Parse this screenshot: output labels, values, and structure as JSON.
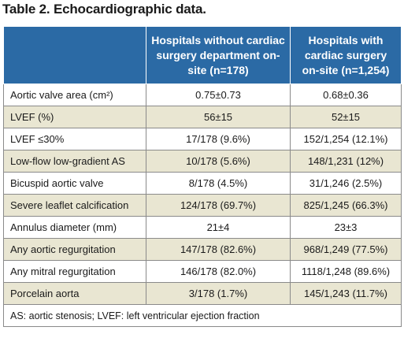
{
  "title": "Table 2. Echocardiographic data.",
  "columns": {
    "col1": "",
    "col2": "Hospitals without cardiac surgery department on-site (n=178)",
    "col3": "Hospitals with cardiac surgery on-site (n=1,254)"
  },
  "rows": [
    {
      "label": "Aortic valve area (cm²)",
      "without": "0.75±0.73",
      "with": "0.68±0.36"
    },
    {
      "label": "LVEF (%)",
      "without": "56±15",
      "with": "52±15"
    },
    {
      "label": "LVEF ≤30%",
      "without": "17/178 (9.6%)",
      "with": "152/1,254 (12.1%)"
    },
    {
      "label": "Low-flow low-gradient AS",
      "without": "10/178 (5.6%)",
      "with": "148/1,231 (12%)"
    },
    {
      "label": "Bicuspid aortic valve",
      "without": "8/178 (4.5%)",
      "with": "31/1,246 (2.5%)"
    },
    {
      "label": "Severe leaflet calcification",
      "without": "124/178 (69.7%)",
      "with": "825/1,245 (66.3%)"
    },
    {
      "label": "Annulus diameter (mm)",
      "without": "21±4",
      "with": "23±3"
    },
    {
      "label": "Any aortic regurgitation",
      "without": "147/178 (82.6%)",
      "with": "968/1,249 (77.5%)"
    },
    {
      "label": "Any mitral regurgitation",
      "without": "146/178 (82.0%)",
      "with": "1118/1,248 (89.6%)"
    },
    {
      "label": "Porcelain aorta",
      "without": "3/178 (1.7%)",
      "with": "145/1,243 (11.7%)"
    }
  ],
  "footnote": "AS: aortic stenosis; LVEF: left ventricular ejection fraction",
  "colors": {
    "header_bg": "#2b6aa5",
    "stripe_bg": "#e9e6d2"
  }
}
